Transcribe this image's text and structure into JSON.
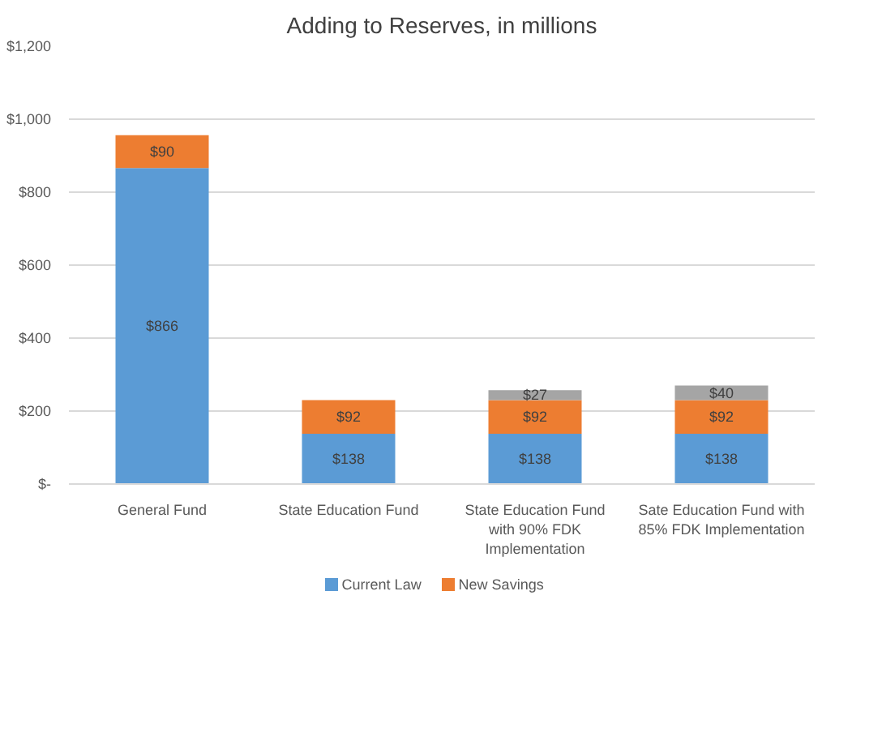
{
  "chart_data": {
    "type": "bar",
    "title": "Adding to Reserves, in millions",
    "stacked": true,
    "categories": [
      "General Fund",
      "State Education Fund",
      "State Education Fund with 90% FDK Implementation",
      "Sate Education Fund with 85% FDK Implementation"
    ],
    "series": [
      {
        "name": "Current Law",
        "color": "#5b9bd5",
        "values": [
          866,
          138,
          138,
          138
        ],
        "value_labels": [
          "$866",
          "$138",
          "$138",
          "$138"
        ]
      },
      {
        "name": "New Savings",
        "color": "#ed7d31",
        "values": [
          90,
          92,
          92,
          92
        ],
        "value_labels": [
          "$90",
          "$92",
          "$92",
          "$92"
        ]
      },
      {
        "color": "#a5a5a5",
        "values": [
          null,
          null,
          27,
          40
        ],
        "value_labels": [
          null,
          null,
          "$27",
          "$40"
        ]
      }
    ],
    "ylim": [
      0,
      1200
    ],
    "yticks": [
      {
        "value": 0,
        "label": "$-"
      },
      {
        "value": 200,
        "label": "$200"
      },
      {
        "value": 400,
        "label": "$400"
      },
      {
        "value": 600,
        "label": "$600"
      },
      {
        "value": 800,
        "label": "$800"
      },
      {
        "value": 1000,
        "label": "$1,000"
      },
      {
        "value": 1200,
        "label": "$1,200"
      }
    ],
    "grid": "y",
    "legend": "bottom"
  }
}
